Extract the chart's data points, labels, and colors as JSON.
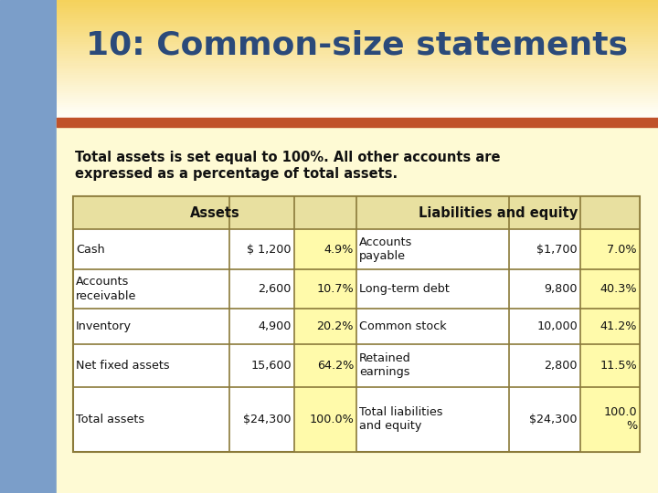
{
  "title": "10: Common-size statements",
  "subtitle_line1": "Total assets is set equal to 100%. All other accounts are",
  "subtitle_line2": "expressed as a percentage of total assets.",
  "bg_color": "#FEFAD4",
  "left_sidebar_color": "#7B9EC9",
  "accent_bar_color": "#C0522A",
  "title_color": "#2B4A7A",
  "table_border_color": "#8B7A3A",
  "highlight_color": "#FFFAAA",
  "col_header_color": "#E8E0A0",
  "assets_header": "Assets",
  "liabilities_header": "Liabilities and equity",
  "assets_rows": [
    [
      "Cash",
      "$ 1,200",
      "4.9%"
    ],
    [
      "Accounts\nreceivable",
      "2,600",
      "10.7%"
    ],
    [
      "Inventory",
      "4,900",
      "20.2%"
    ],
    [
      "Net fixed assets",
      "15,600",
      "64.2%"
    ],
    [
      "Total assets",
      "$24,300",
      "100.0%"
    ]
  ],
  "liabilities_rows": [
    [
      "Accounts\npayable",
      "$1,700",
      "7.0%"
    ],
    [
      "Long-term debt",
      "9,800",
      "40.3%"
    ],
    [
      "Common stock",
      "10,000",
      "41.2%"
    ],
    [
      "Retained\nearnings",
      "2,800",
      "11.5%"
    ],
    [
      "Total liabilities\nand equity",
      "$24,300",
      "100.0\n%"
    ]
  ]
}
